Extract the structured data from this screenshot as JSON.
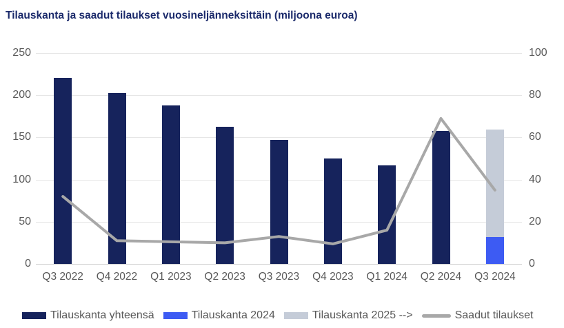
{
  "chart_data": {
    "type": "bar",
    "subtype": "stacked-bars-with-line-on-secondary-axis",
    "title": "Tilauskanta ja saadut tilaukset vuosineljänneksittäin (miljoona euroa)",
    "categories": [
      "Q3 2022",
      "Q4 2022",
      "Q1 2023",
      "Q2 2023",
      "Q3 2023",
      "Q4 2023",
      "Q1 2024",
      "Q2 2024",
      "Q3 2024"
    ],
    "series": [
      {
        "name": "Tilauskanta yhteensä",
        "type": "bar",
        "axis": "left",
        "color": "#16235c",
        "values": [
          221,
          203,
          188,
          163,
          147,
          125,
          117,
          158,
          0
        ]
      },
      {
        "name": "Tilauskanta 2024",
        "type": "bar",
        "axis": "left",
        "color": "#3d5bf3",
        "values": [
          0,
          0,
          0,
          0,
          0,
          0,
          0,
          0,
          32
        ]
      },
      {
        "name": "Tilauskanta 2025 -->",
        "type": "bar",
        "axis": "left",
        "color": "#c5ccd8",
        "values": [
          0,
          0,
          0,
          0,
          0,
          0,
          0,
          0,
          127
        ]
      },
      {
        "name": "Saadut tilaukset",
        "type": "line",
        "axis": "right",
        "color": "#a8a8a8",
        "values": [
          32,
          11,
          10.5,
          10,
          13,
          9.5,
          16,
          69,
          35
        ]
      }
    ],
    "left_axis": {
      "min": 0,
      "max": 250,
      "ticks": [
        0,
        50,
        100,
        150,
        200,
        250
      ]
    },
    "right_axis": {
      "min": 0,
      "max": 100,
      "ticks": [
        0,
        20,
        40,
        60,
        80,
        100
      ]
    },
    "stacked": true,
    "grid": "horizontal",
    "legend_position": "bottom",
    "colors": {
      "title": "#1b2a6b",
      "axis_text": "#595959",
      "gridline": "#e6e6e6",
      "baseline": "#d2d2d2",
      "background": "#ffffff"
    }
  }
}
